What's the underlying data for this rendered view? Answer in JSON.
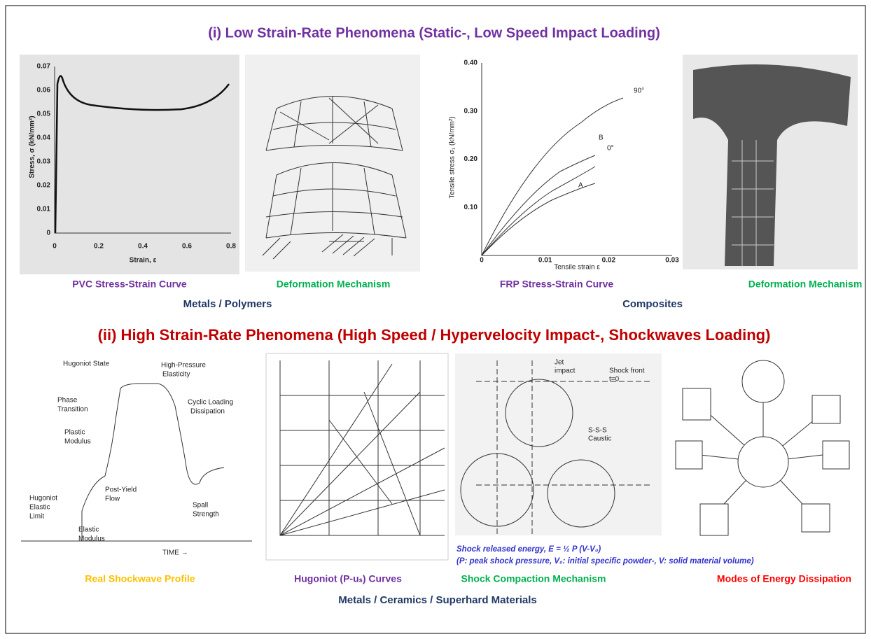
{
  "sections": [
    {
      "title": "(i) Low Strain-Rate Phenomena (Static-, Low Speed Impact Loading)",
      "captions": [
        "PVC Stress-Strain Curve",
        "Deformation Mechanism",
        "FRP Stress-Strain Curve",
        "Deformation Mechanism"
      ],
      "groups": [
        "Metals / Polymers",
        "Composites"
      ]
    },
    {
      "title": "(ii) High Strain-Rate Phenomena (High Speed / Hypervelocity Impact-, Shockwaves Loading)",
      "captions": [
        "Real Shockwave Profile",
        "Hugoniot (P-uₛ) Curves",
        "Shock Compaction Mechanism",
        "Modes of Energy Dissipation"
      ],
      "groups": [
        "Metals / Ceramics / Superhard Materials"
      ]
    }
  ],
  "pvc_chart": {
    "ylabel": "Stress, σ (kN/mm²)",
    "xlabel": "Strain, ε",
    "yticks": [
      "0",
      "0.01",
      "0.02",
      "0.03",
      "0.04",
      "0.05",
      "0.06",
      "0.07"
    ],
    "xticks": [
      "0",
      "0.2",
      "0.4",
      "0.6",
      "0.8"
    ]
  },
  "frp_chart": {
    "ylabel": "Tensile stress σ₁ (kN/mm²)",
    "xlabel": "Tensile strain ε",
    "yticks": [
      "0.10",
      "0.20",
      "0.30",
      "0.40"
    ],
    "xticks": [
      "0",
      "0.01",
      "0.02",
      "0.03"
    ],
    "curve_labels": [
      "90°",
      "B",
      "0°",
      "A"
    ]
  },
  "shockwave_profile": {
    "labels": [
      "Hugoniot State",
      "High-Pressure",
      "Elasticity",
      "Phase",
      "Transition",
      "Cyclic Loading",
      "Dissipation",
      "Plastic",
      "Modulus",
      "Hugoniot",
      "Elastic",
      "Limit",
      "Post-Yield",
      "Flow",
      "Elastic",
      "Modulus",
      "Spall",
      "Strength",
      "TIME →"
    ]
  },
  "compaction": {
    "labels": [
      "Jet",
      "impact",
      "Shock front",
      "t=0",
      "S-S-S",
      "Caustic"
    ]
  },
  "energy_note": [
    "Shock released energy, E = ½ P (V-V₀)",
    "(P: peak shock pressure, V₀: initial specific powder-, V: solid material volume)"
  ]
}
